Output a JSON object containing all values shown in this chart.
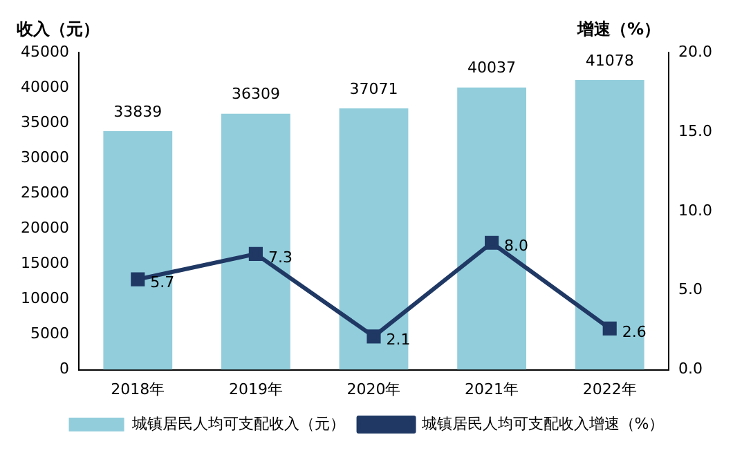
{
  "chart_data": {
    "type": "bar",
    "ylabel": "收入（元）",
    "y2label": "增速（%）",
    "categories": [
      "2018年",
      "2019年",
      "2020年",
      "2021年",
      "2022年"
    ],
    "series": [
      {
        "name": "城镇居民人均可支配收入（元）",
        "color": "#92cddc",
        "values": [
          33839,
          36309,
          37071,
          40037,
          41078
        ],
        "value_labels": [
          "33839",
          "36309",
          "37071",
          "40037",
          "41078"
        ]
      },
      {
        "name": "城镇居民人均可支配收入增速（%）",
        "type": "line",
        "axis": "y2",
        "color": "#1f3864",
        "marker": "square",
        "values": [
          5.7,
          7.3,
          2.1,
          8.0,
          2.6
        ],
        "value_labels": [
          "5.7",
          "7.3",
          "2.1",
          "8.0",
          "2.6"
        ]
      }
    ],
    "ylim": [
      0,
      45000
    ],
    "yticks": [
      0,
      5000,
      10000,
      15000,
      20000,
      25000,
      30000,
      35000,
      40000,
      45000
    ],
    "y2lim": [
      0,
      20
    ],
    "y2ticks": [
      {
        "value": 0,
        "label": "0.0"
      },
      {
        "value": 5,
        "label": "5.0"
      },
      {
        "value": 10,
        "label": "10.0"
      },
      {
        "value": 15,
        "label": "15.0"
      },
      {
        "value": 20,
        "label": "20.0"
      }
    ],
    "grid": false,
    "legend": "bottom"
  }
}
